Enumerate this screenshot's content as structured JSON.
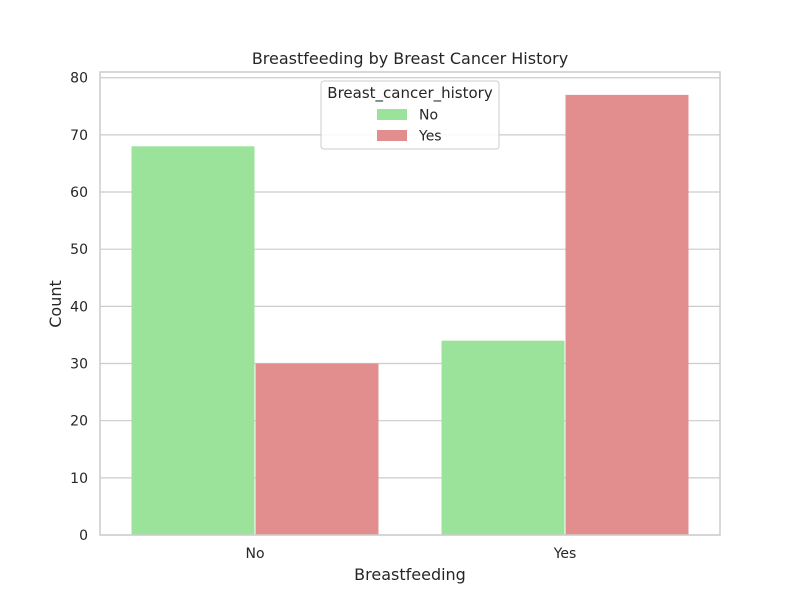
{
  "chart_data": {
    "type": "bar",
    "title": "Breastfeeding by Breast Cancer History",
    "xlabel": "Breastfeeding",
    "ylabel": "Count",
    "categories": [
      "No",
      "Yes"
    ],
    "series": [
      {
        "name": "No",
        "values": [
          68,
          34
        ],
        "color": "#9be39b"
      },
      {
        "name": "Yes",
        "values": [
          30,
          77
        ],
        "color": "#e28d8e"
      }
    ],
    "ylim": [
      0,
      81
    ],
    "yticks": [
      0,
      10,
      20,
      30,
      40,
      50,
      60,
      70,
      80
    ],
    "grid": true,
    "legend": {
      "title": "Breast_cancer_history",
      "placement": "top-center"
    },
    "colors": {
      "background": "#ffffff",
      "grid": "#cccccc",
      "frame": "#cccccc"
    }
  }
}
